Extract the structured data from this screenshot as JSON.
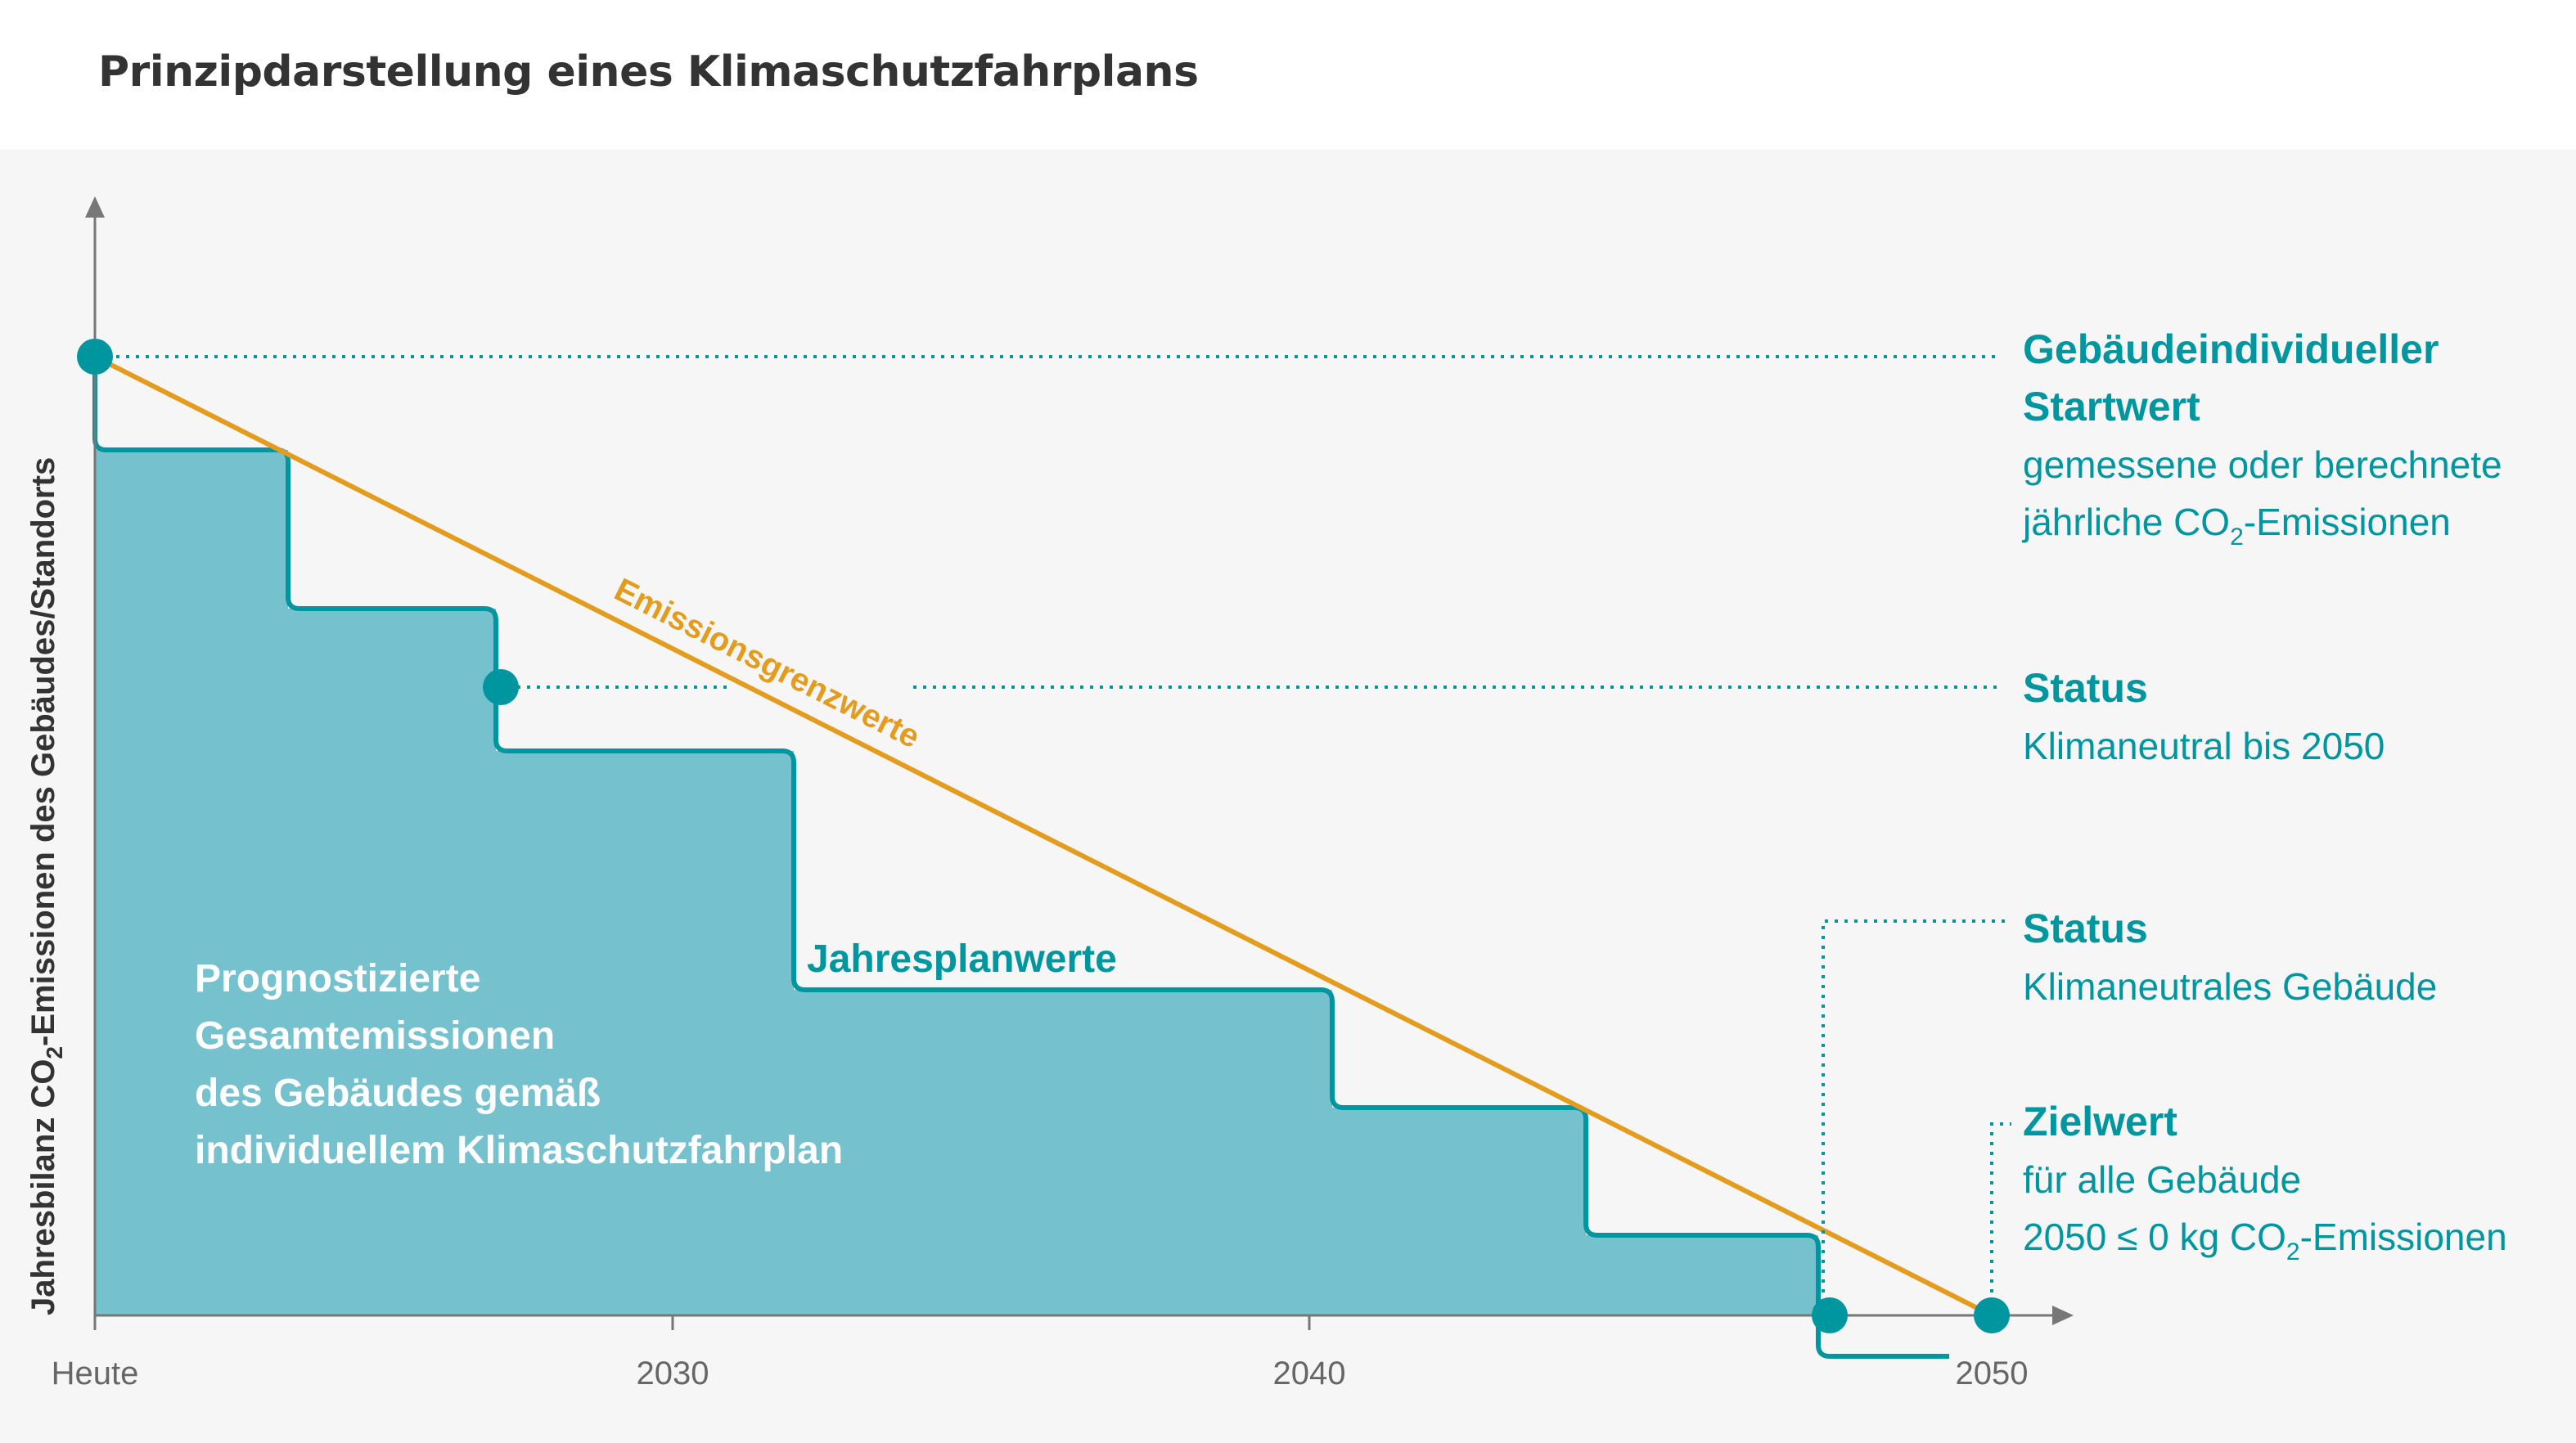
{
  "title": "Prinzipdarstellung eines Klimaschutzfahrplans",
  "colors": {
    "teal": "#00969f",
    "teal_fill": "#76c1ce",
    "orange": "#e39c1e",
    "axis": "#777777",
    "text_dark": "#333333",
    "tick_text": "#666666",
    "white": "#ffffff"
  },
  "y_axis": {
    "label_before": "Jahresbilanz CO",
    "label_sub": "2",
    "label_after": "-Emissionen des Gebäudes/Standorts"
  },
  "x_axis": {
    "ticks": [
      "Heute",
      "2030",
      "2040",
      "2050"
    ]
  },
  "labels": {
    "emission_limit": "Emissionsgrenzwerte",
    "plan_values": "Jahresplanwerte",
    "area_lines": [
      "Prognostizierte",
      "Gesamtemissionen",
      "des Gebäudes gemäß",
      "individuellem Klimaschutzfahrplan"
    ]
  },
  "annotations": {
    "start": {
      "title_lines": [
        "Gebäudeindividueller",
        "Startwert"
      ],
      "line1": "gemessene oder berechnete",
      "line2_before": "jährliche CO",
      "line2_sub": "2",
      "line2_after": "-Emissionen"
    },
    "status1": {
      "title": "Status",
      "text": "Klimaneutral bis 2050"
    },
    "status2": {
      "title": "Status",
      "text": "Klimaneutrales Gebäude"
    },
    "target": {
      "title": "Zielwert",
      "line1": "für alle Gebäude",
      "line2_before": "2050 ≤ 0 kg CO",
      "line2_sub": "2",
      "line2_after": "-Emissionen"
    }
  }
}
